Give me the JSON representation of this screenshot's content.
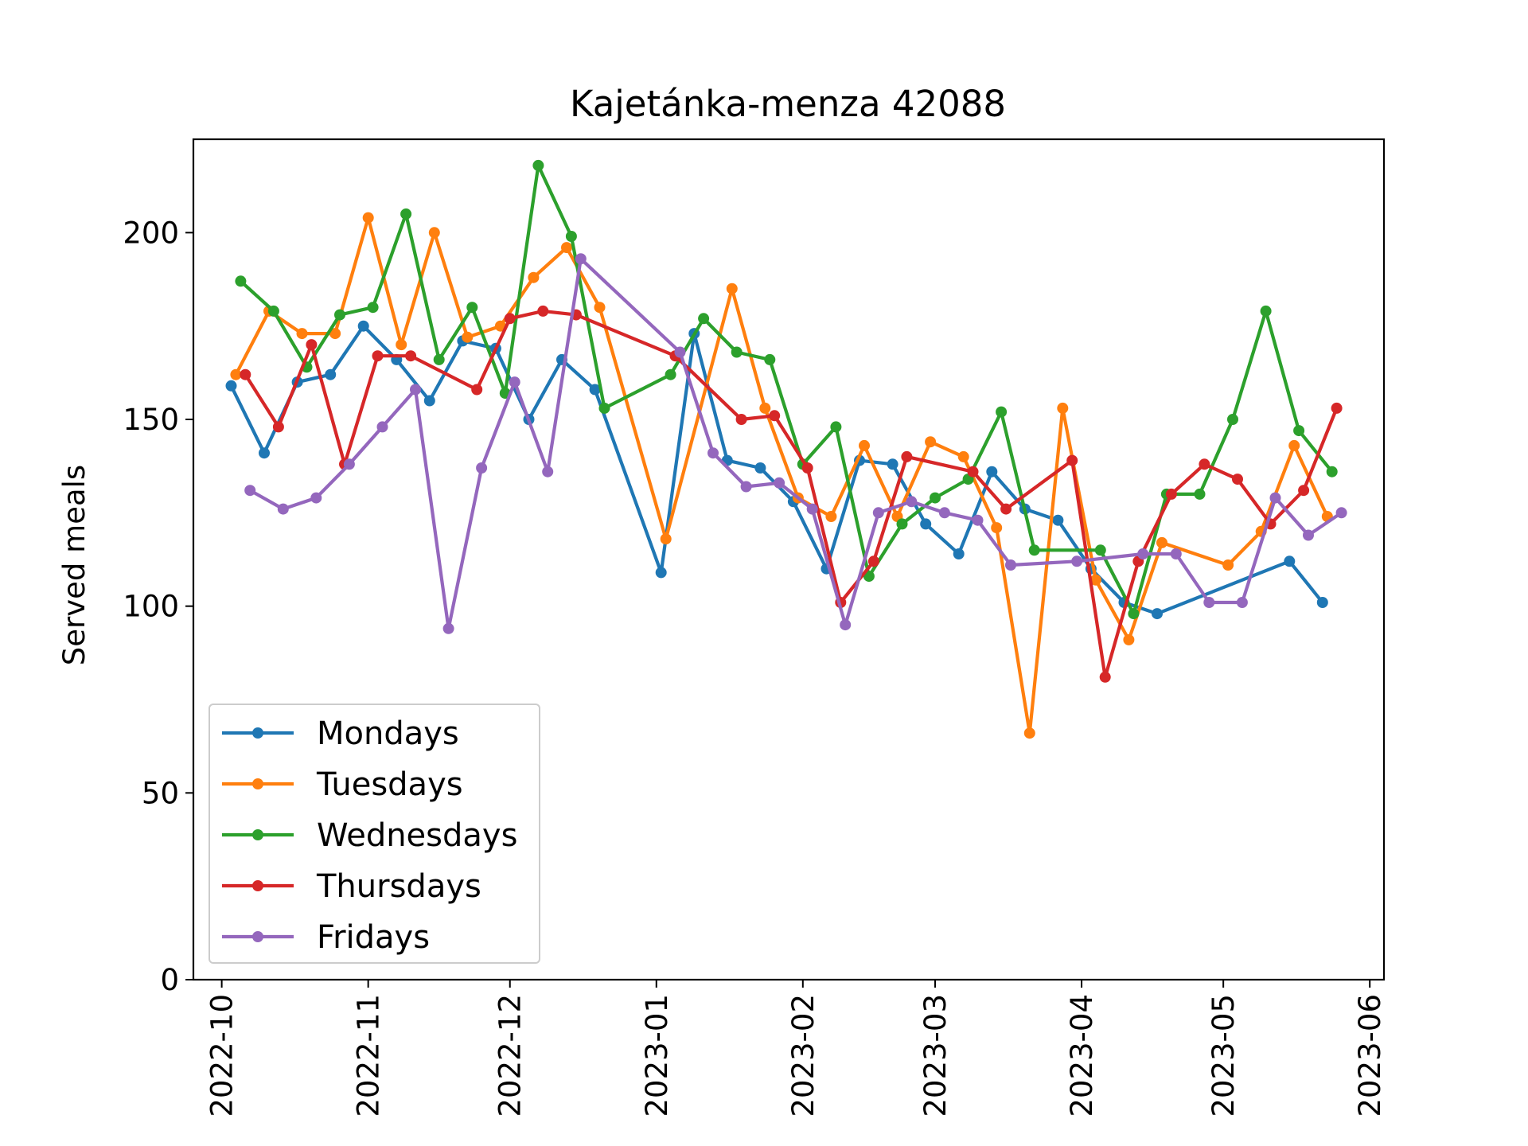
{
  "chart_data": {
    "type": "line",
    "title": "Kajetánka-menza 42088",
    "xlabel": "",
    "ylabel": "Served meals",
    "ylim": [
      0,
      225
    ],
    "xlim": [
      "2022-09-25",
      "2023-06-04"
    ],
    "y_ticks": [
      0,
      50,
      100,
      150,
      200
    ],
    "x_ticks": [
      "2022-10",
      "2022-11",
      "2022-12",
      "2023-01",
      "2023-02",
      "2023-03",
      "2023-04",
      "2023-05",
      "2023-06"
    ],
    "x_tick_dates": [
      "2022-10-01",
      "2022-11-01",
      "2022-12-01",
      "2023-01-01",
      "2023-02-01",
      "2023-03-01",
      "2023-04-01",
      "2023-05-01",
      "2023-06-01"
    ],
    "grid": false,
    "legend_position": "lower-left",
    "marker": "circle",
    "series": [
      {
        "name": "Mondays",
        "color": "#1f77b4",
        "x": [
          "2022-10-03",
          "2022-10-10",
          "2022-10-17",
          "2022-10-24",
          "2022-10-31",
          "2022-11-07",
          "2022-11-14",
          "2022-11-21",
          "2022-11-28",
          "2022-12-05",
          "2022-12-12",
          "2022-12-19",
          "2023-01-02",
          "2023-01-09",
          "2023-01-16",
          "2023-01-23",
          "2023-01-30",
          "2023-02-06",
          "2023-02-13",
          "2023-02-20",
          "2023-02-27",
          "2023-03-06",
          "2023-03-13",
          "2023-03-20",
          "2023-03-27",
          "2023-04-03",
          "2023-04-10",
          "2023-04-17",
          "2023-05-15",
          "2023-05-22"
        ],
        "y": [
          159,
          141,
          160,
          162,
          175,
          166,
          155,
          171,
          169,
          150,
          166,
          158,
          109,
          173,
          139,
          137,
          128,
          110,
          139,
          138,
          122,
          114,
          136,
          126,
          123,
          110,
          101,
          98,
          112,
          101
        ]
      },
      {
        "name": "Tuesdays",
        "color": "#ff7f0e",
        "x": [
          "2022-10-04",
          "2022-10-11",
          "2022-10-18",
          "2022-10-25",
          "2022-11-01",
          "2022-11-08",
          "2022-11-15",
          "2022-11-22",
          "2022-11-29",
          "2022-12-06",
          "2022-12-13",
          "2022-12-20",
          "2023-01-03",
          "2023-01-17",
          "2023-01-24",
          "2023-01-31",
          "2023-02-07",
          "2023-02-14",
          "2023-02-21",
          "2023-02-28",
          "2023-03-07",
          "2023-03-14",
          "2023-03-21",
          "2023-03-28",
          "2023-04-04",
          "2023-04-11",
          "2023-04-18",
          "2023-05-02",
          "2023-05-09",
          "2023-05-16",
          "2023-05-23"
        ],
        "y": [
          162,
          179,
          173,
          173,
          204,
          170,
          200,
          172,
          175,
          188,
          196,
          180,
          118,
          185,
          153,
          129,
          124,
          143,
          124,
          144,
          140,
          121,
          66,
          153,
          107,
          91,
          117,
          111,
          120,
          143,
          124
        ]
      },
      {
        "name": "Wednesdays",
        "color": "#2ca02c",
        "x": [
          "2022-10-05",
          "2022-10-12",
          "2022-10-19",
          "2022-10-26",
          "2022-11-02",
          "2022-11-09",
          "2022-11-16",
          "2022-11-23",
          "2022-11-30",
          "2022-12-07",
          "2022-12-14",
          "2022-12-21",
          "2023-01-04",
          "2023-01-11",
          "2023-01-18",
          "2023-01-25",
          "2023-02-01",
          "2023-02-08",
          "2023-02-15",
          "2023-02-22",
          "2023-03-01",
          "2023-03-08",
          "2023-03-15",
          "2023-03-22",
          "2023-04-05",
          "2023-04-12",
          "2023-04-19",
          "2023-04-26",
          "2023-05-03",
          "2023-05-10",
          "2023-05-17",
          "2023-05-24"
        ],
        "y": [
          187,
          179,
          164,
          178,
          180,
          205,
          166,
          180,
          157,
          218,
          199,
          153,
          162,
          177,
          168,
          166,
          138,
          148,
          108,
          122,
          129,
          134,
          152,
          115,
          115,
          98,
          130,
          130,
          150,
          179,
          147,
          136
        ]
      },
      {
        "name": "Thursdays",
        "color": "#d62728",
        "x": [
          "2022-10-06",
          "2022-10-13",
          "2022-10-20",
          "2022-10-27",
          "2022-11-03",
          "2022-11-10",
          "2022-11-24",
          "2022-12-01",
          "2022-12-08",
          "2022-12-15",
          "2023-01-05",
          "2023-01-19",
          "2023-01-26",
          "2023-02-02",
          "2023-02-09",
          "2023-02-16",
          "2023-02-23",
          "2023-03-09",
          "2023-03-16",
          "2023-03-30",
          "2023-04-06",
          "2023-04-13",
          "2023-04-20",
          "2023-04-27",
          "2023-05-04",
          "2023-05-11",
          "2023-05-18",
          "2023-05-25"
        ],
        "y": [
          162,
          148,
          170,
          138,
          167,
          167,
          158,
          177,
          179,
          178,
          167,
          150,
          151,
          137,
          101,
          112,
          140,
          136,
          126,
          139,
          81,
          112,
          130,
          138,
          134,
          122,
          131,
          153
        ]
      },
      {
        "name": "Fridays",
        "color": "#9467bd",
        "x": [
          "2022-10-07",
          "2022-10-14",
          "2022-10-21",
          "2022-10-28",
          "2022-11-04",
          "2022-11-11",
          "2022-11-18",
          "2022-11-25",
          "2022-12-02",
          "2022-12-09",
          "2022-12-16",
          "2023-01-06",
          "2023-01-13",
          "2023-01-20",
          "2023-01-27",
          "2023-02-03",
          "2023-02-10",
          "2023-02-17",
          "2023-02-24",
          "2023-03-03",
          "2023-03-10",
          "2023-03-17",
          "2023-03-31",
          "2023-04-14",
          "2023-04-21",
          "2023-04-28",
          "2023-05-05",
          "2023-05-12",
          "2023-05-19",
          "2023-05-26"
        ],
        "y": [
          131,
          126,
          129,
          138,
          148,
          158,
          94,
          137,
          160,
          136,
          193,
          168,
          141,
          132,
          133,
          126,
          95,
          125,
          128,
          125,
          123,
          111,
          112,
          114,
          114,
          101,
          101,
          129,
          119,
          125
        ]
      }
    ]
  }
}
